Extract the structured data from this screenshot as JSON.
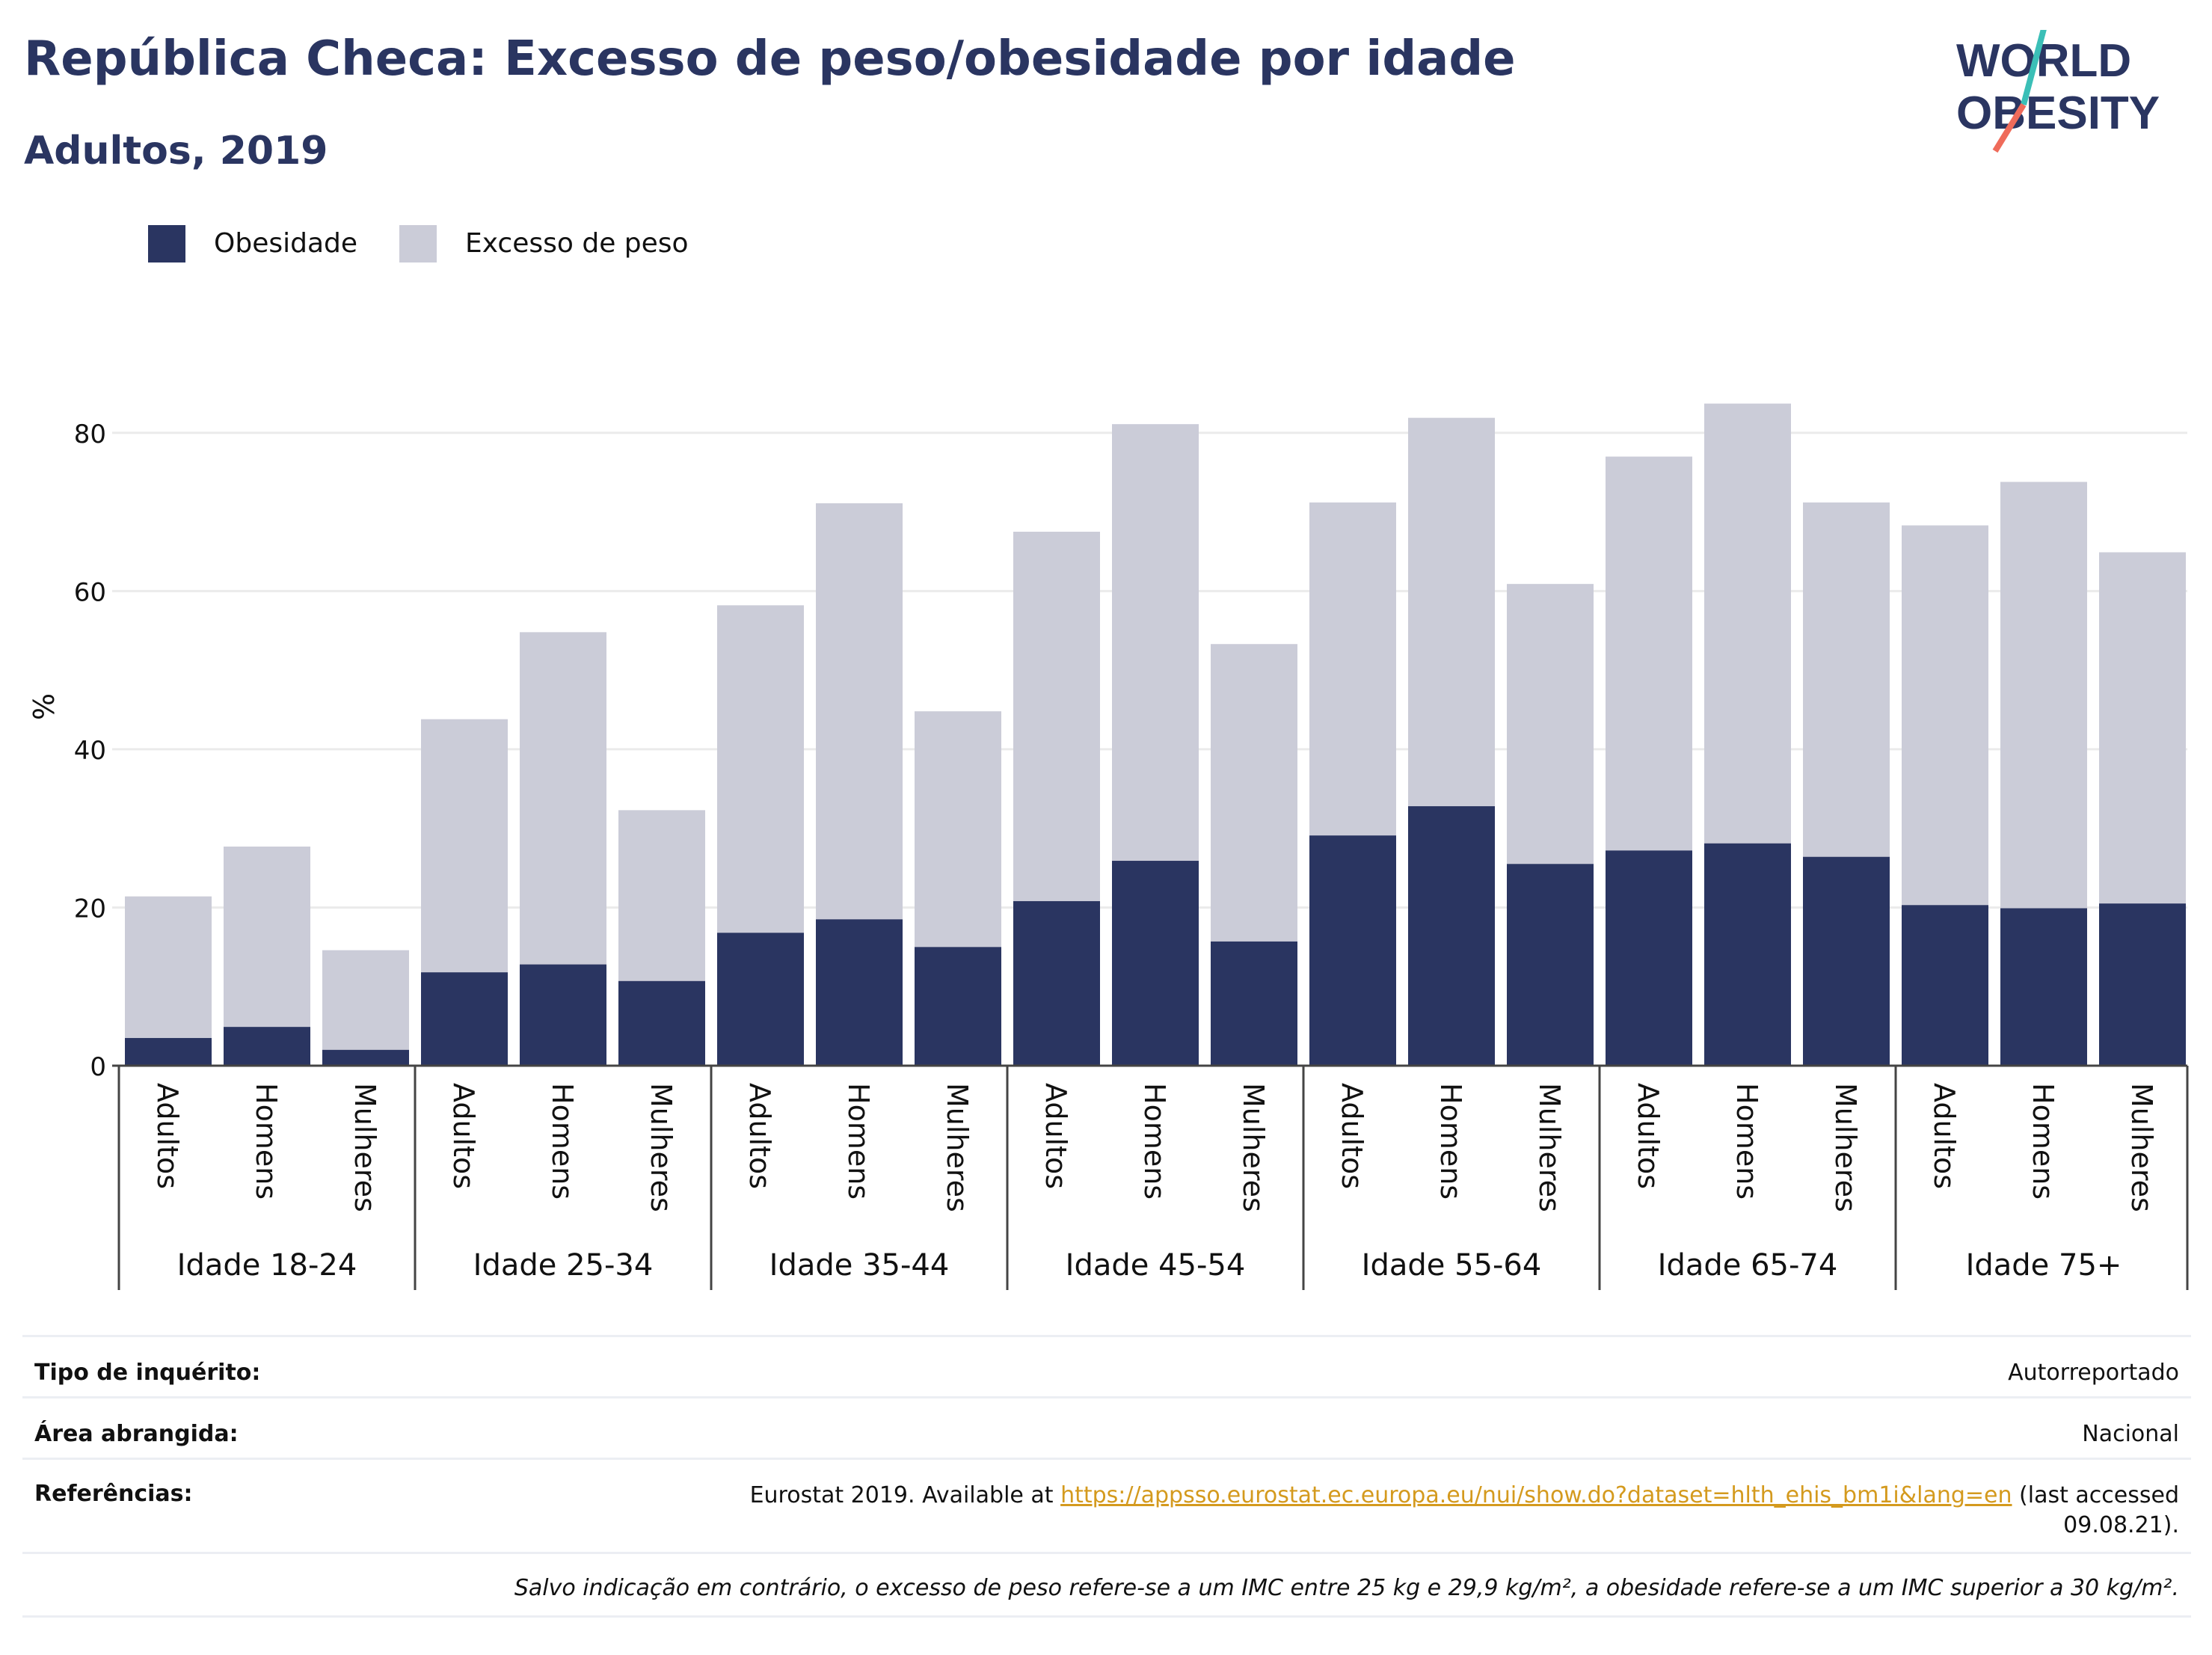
{
  "header": {
    "title": "República Checa: Excesso de peso/obesidade por idade",
    "subtitle": "Adultos, 2019",
    "logo_line1": "WORLD",
    "logo_line2": "OBESITY"
  },
  "colors": {
    "obesity": "#2a3561",
    "overweight": "#cbccd8",
    "title": "#2a3561",
    "logo_teal": "#3bbfb7",
    "logo_coral": "#ef6b5a",
    "link": "#d49a1e"
  },
  "legend": [
    {
      "label": "Obesidade",
      "color": "#2a3561"
    },
    {
      "label": "Excesso de peso",
      "color": "#cbccd8"
    }
  ],
  "chart_data": {
    "type": "bar",
    "stacked": false,
    "ylabel": "%",
    "ylim": [
      0,
      90
    ],
    "yticks": [
      0,
      20,
      40,
      60,
      80
    ],
    "grid": true,
    "legend_position": "top-left",
    "groups": [
      "Idade 18-24",
      "Idade 25-34",
      "Idade 35-44",
      "Idade 45-54",
      "Idade 55-64",
      "Idade 65-74",
      "Idade 75+"
    ],
    "subcategories": [
      "Adultos",
      "Homens",
      "Mulheres"
    ],
    "series": [
      {
        "name": "Obesidade",
        "values": [
          3.5,
          4.9,
          2.0,
          11.8,
          12.8,
          10.7,
          16.8,
          18.5,
          15.0,
          20.8,
          25.9,
          15.7,
          29.1,
          32.8,
          25.5,
          27.2,
          28.1,
          26.4,
          20.3,
          19.9,
          20.5
        ]
      },
      {
        "name": "Excesso de peso",
        "values": [
          21.4,
          27.7,
          14.6,
          43.8,
          54.8,
          32.3,
          58.2,
          71.1,
          44.8,
          67.5,
          81.1,
          53.3,
          71.2,
          81.9,
          60.9,
          77.0,
          83.7,
          71.2,
          68.3,
          73.8,
          64.9
        ]
      }
    ]
  },
  "info": {
    "survey_type_label": "Tipo de inquérito:",
    "survey_type_value": "Autorreportado",
    "area_label": "Área abrangida:",
    "area_value": "Nacional",
    "references_label": "Referências:",
    "references_prefix": "Eurostat 2019. Available at ",
    "references_link": "https://appsso.eurostat.ec.europa.eu/nui/show.do?dataset=hlth_ehis_bm1i&lang=en",
    "references_suffix_1": " (last accessed",
    "references_suffix_2": "09.08.21).",
    "note": "Salvo indicação em contrário, o excesso de peso refere-se a um IMC entre 25 kg e 29,9 kg/m², a obesidade refere-se a um IMC superior a 30 kg/m²."
  }
}
